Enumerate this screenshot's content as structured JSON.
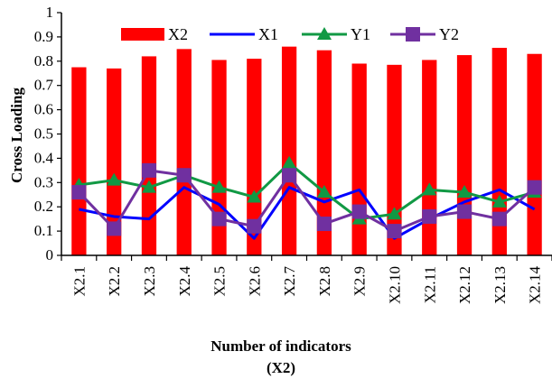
{
  "chart_data": {
    "type": "bar",
    "categories": [
      "X2.1",
      "X2.2",
      "X2.3",
      "X2.4",
      "X2.5",
      "X2.6",
      "X2.7",
      "X2.8",
      "X2.9",
      "X2.10",
      "X2.11",
      "X2.12",
      "X2.13",
      "X2.14"
    ],
    "series": [
      {
        "name": "X2",
        "kind": "bar",
        "color": "#ff0000",
        "values": [
          0.775,
          0.77,
          0.82,
          0.85,
          0.805,
          0.81,
          0.86,
          0.845,
          0.79,
          0.785,
          0.805,
          0.825,
          0.855,
          0.83
        ]
      },
      {
        "name": "X1",
        "kind": "line",
        "color": "#0000ff",
        "marker": "none",
        "values": [
          0.19,
          0.16,
          0.15,
          0.28,
          0.21,
          0.07,
          0.28,
          0.22,
          0.27,
          0.07,
          0.15,
          0.22,
          0.27,
          0.19
        ]
      },
      {
        "name": "Y1",
        "kind": "line",
        "color": "#119944",
        "marker": "triangle",
        "values": [
          0.29,
          0.31,
          0.28,
          0.33,
          0.28,
          0.24,
          0.38,
          0.26,
          0.15,
          0.17,
          0.27,
          0.26,
          0.22,
          0.26
        ]
      },
      {
        "name": "Y2",
        "kind": "line",
        "color": "#7030a0",
        "marker": "square",
        "values": [
          0.26,
          0.11,
          0.35,
          0.33,
          0.15,
          0.12,
          0.33,
          0.13,
          0.18,
          0.1,
          0.16,
          0.18,
          0.15,
          0.28
        ]
      }
    ],
    "xlabel": [
      "Number of indicators",
      "(X2)"
    ],
    "ylabel": "Cross Loading",
    "ylim": [
      0,
      1
    ],
    "yticks": [
      "0",
      "0.1",
      "0.2",
      "0.3",
      "0.4",
      "0.5",
      "0.6",
      "0.7",
      "0.8",
      "0.9",
      "1"
    ],
    "legend_position": "top"
  }
}
